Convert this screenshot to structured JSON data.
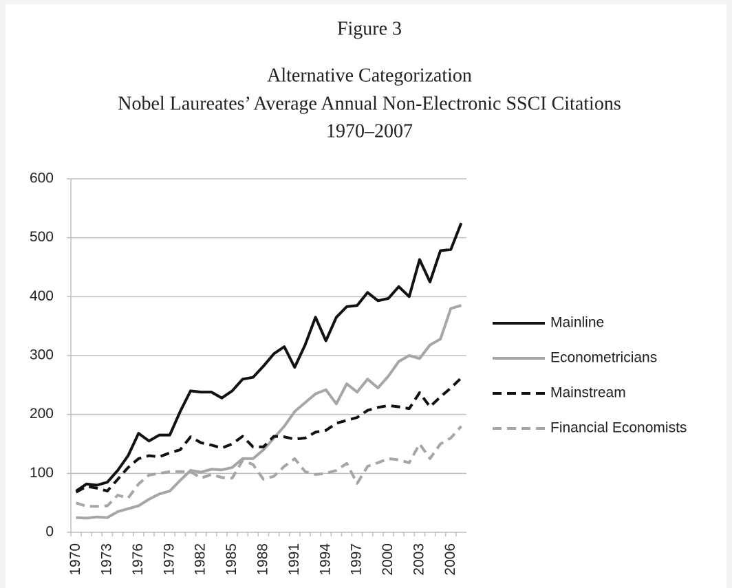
{
  "chart_data": {
    "type": "line",
    "title": "Figure 3",
    "subtitle": [
      "Alternative Categorization",
      "Nobel Laureates’ Average Annual Non-Electronic SSCI Citations",
      "1970–2007"
    ],
    "categories": [
      "1970",
      null,
      null,
      "1973",
      null,
      null,
      "1976",
      null,
      null,
      "1979",
      null,
      null,
      "1982",
      null,
      null,
      "1985",
      null,
      null,
      "1988",
      null,
      null,
      "1991",
      null,
      null,
      "1994",
      null,
      null,
      "1997",
      null,
      null,
      "2000",
      null,
      null,
      "2003",
      null,
      null,
      "2006",
      null
    ],
    "ylim": [
      0,
      600
    ],
    "yticks": [
      0,
      100,
      200,
      300,
      400,
      500,
      600
    ],
    "grid": true,
    "legend": "right",
    "series": [
      {
        "name": "Mainline",
        "color": "#111111",
        "dash": false,
        "values": [
          70,
          82,
          80,
          85,
          105,
          130,
          168,
          155,
          165,
          165,
          205,
          240,
          238,
          238,
          228,
          240,
          260,
          263,
          282,
          303,
          315,
          280,
          318,
          365,
          325,
          365,
          383,
          385,
          407,
          393,
          397,
          417,
          400,
          463,
          425,
          478,
          480,
          525
        ]
      },
      {
        "name": "Econometricians",
        "color": "#a6a6a6",
        "dash": false,
        "values": [
          25,
          24,
          26,
          25,
          35,
          40,
          45,
          56,
          65,
          70,
          88,
          105,
          102,
          107,
          106,
          110,
          125,
          125,
          140,
          160,
          180,
          205,
          220,
          235,
          242,
          218,
          252,
          238,
          260,
          245,
          265,
          290,
          300,
          295,
          318,
          328,
          380,
          385
        ]
      },
      {
        "name": "Mainstream",
        "color": "#111111",
        "dash": true,
        "values": [
          68,
          78,
          75,
          70,
          90,
          110,
          125,
          130,
          128,
          135,
          140,
          162,
          152,
          148,
          143,
          150,
          163,
          145,
          145,
          163,
          162,
          158,
          160,
          170,
          173,
          185,
          190,
          195,
          207,
          212,
          215,
          213,
          210,
          237,
          213,
          230,
          245,
          262
        ]
      },
      {
        "name": "Financial Economists",
        "color": "#a6a6a6",
        "dash": true,
        "values": [
          50,
          44,
          44,
          45,
          63,
          58,
          82,
          97,
          100,
          103,
          103,
          103,
          92,
          98,
          93,
          92,
          122,
          115,
          90,
          95,
          112,
          125,
          103,
          98,
          100,
          105,
          117,
          83,
          112,
          118,
          125,
          123,
          118,
          150,
          125,
          150,
          160,
          180
        ]
      }
    ]
  }
}
